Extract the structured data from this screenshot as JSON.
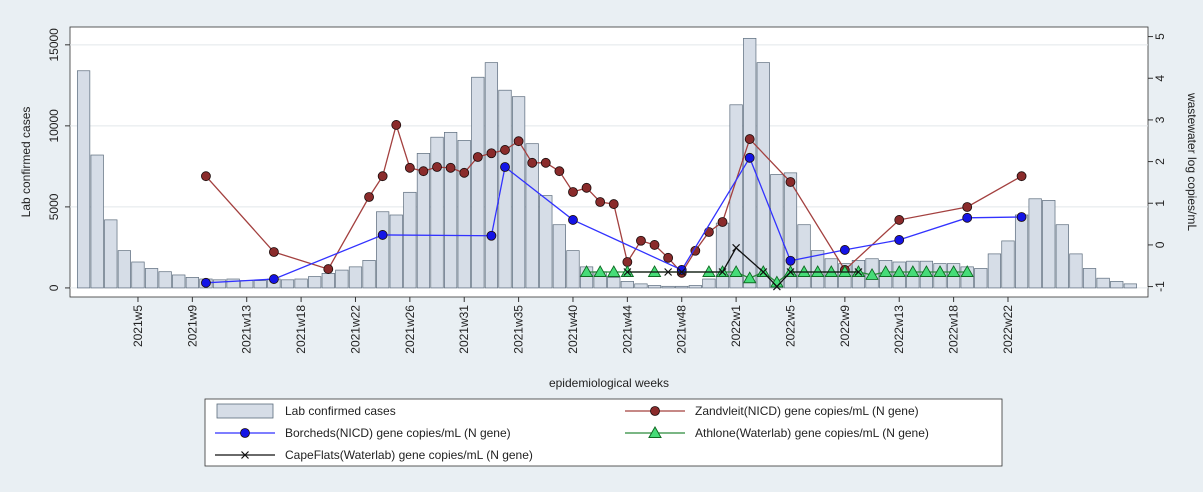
{
  "chart_data": {
    "type": "combo",
    "x_title": "epidemiological weeks",
    "y_title": "Lab confirmed cases",
    "y2_title": "wastewater log copies/mL",
    "xlim": [
      0,
      79.3
    ],
    "xticks": [
      {
        "value": 5,
        "label": "2021w5"
      },
      {
        "value": 9,
        "label": "2021w9"
      },
      {
        "value": 13,
        "label": "2021w13"
      },
      {
        "value": 17,
        "label": "2021w18"
      },
      {
        "value": 21,
        "label": "2021w22"
      },
      {
        "value": 25,
        "label": "2021w26"
      },
      {
        "value": 29,
        "label": "2021w31"
      },
      {
        "value": 33,
        "label": "2021w35"
      },
      {
        "value": 37,
        "label": "2021w40"
      },
      {
        "value": 41,
        "label": "2021w44"
      },
      {
        "value": 45,
        "label": "2021w48"
      },
      {
        "value": 49,
        "label": "2022w1"
      },
      {
        "value": 53,
        "label": "2022w5"
      },
      {
        "value": 57,
        "label": "2022w9"
      },
      {
        "value": 61,
        "label": "2022w13"
      },
      {
        "value": 65,
        "label": "2022w18"
      },
      {
        "value": 69,
        "label": "2022w22"
      }
    ],
    "ylim": [
      -560,
      16100
    ],
    "yticks": [
      0,
      5000,
      10000,
      15000
    ],
    "y2lim": [
      -1.25,
      5.23
    ],
    "y2ticks": [
      -1,
      0,
      1,
      2,
      3,
      4,
      5
    ],
    "grid": true,
    "series": [
      {
        "name": "Lab confirmed cases",
        "type": "bar",
        "color": "#d6dde7",
        "edge": "#5b6b7c",
        "x": [
          1,
          2,
          3,
          4,
          5,
          6,
          7,
          8,
          9,
          10,
          11,
          12,
          13,
          14,
          15,
          16,
          17,
          18,
          19,
          20,
          21,
          22,
          23,
          24,
          25,
          26,
          27,
          28,
          29,
          30,
          31,
          32,
          33,
          34,
          35,
          36,
          37,
          38,
          39,
          40,
          41,
          42,
          43,
          44,
          45,
          46,
          47,
          48,
          49,
          50,
          51,
          52,
          53,
          54,
          55,
          56,
          57,
          58,
          59,
          60,
          61,
          62,
          63,
          64,
          65,
          66,
          67,
          68,
          69,
          70,
          71,
          72,
          73,
          74,
          75,
          76,
          77,
          78
        ],
        "values": [
          13400,
          8200,
          4200,
          2300,
          1600,
          1200,
          1000,
          800,
          650,
          550,
          500,
          550,
          450,
          450,
          550,
          500,
          550,
          700,
          900,
          1100,
          1300,
          1700,
          4700,
          4500,
          5900,
          8300,
          9300,
          9600,
          9100,
          13000,
          13900,
          12200,
          11800,
          8900,
          5700,
          3900,
          2300,
          1300,
          1000,
          650,
          400,
          250,
          150,
          100,
          100,
          150,
          550,
          4000,
          11300,
          15400,
          13900,
          7000,
          7100,
          3900,
          2300,
          1800,
          1500,
          1700,
          1800,
          1700,
          1600,
          1650,
          1650,
          1500,
          1500,
          1300,
          1200,
          2100,
          2900,
          4500,
          5500,
          5400,
          3900,
          2100,
          1200,
          600,
          400,
          250
        ]
      },
      {
        "name": "Zandvleit(NICD) gene copies/mL (N gene)",
        "type": "line",
        "axis": "y2",
        "color": "#a3403f",
        "marker": "circle",
        "marker_fill": "#8a2b2b",
        "x": [
          10,
          15,
          19,
          22,
          23,
          24,
          25,
          26,
          27,
          28,
          29,
          30,
          31,
          32,
          33,
          34,
          35,
          36,
          37,
          38,
          39,
          40,
          41,
          42,
          43,
          44,
          45,
          46,
          47,
          48,
          50,
          53,
          57,
          61,
          66,
          70
        ],
        "values": [
          1.65,
          -0.17,
          -0.58,
          1.15,
          1.65,
          2.88,
          1.85,
          1.77,
          1.87,
          1.85,
          1.73,
          2.11,
          2.2,
          2.28,
          2.49,
          1.97,
          1.97,
          1.77,
          1.27,
          1.37,
          1.03,
          0.98,
          -0.41,
          0.1,
          0,
          -0.31,
          -0.67,
          -0.14,
          0.31,
          0.55,
          2.54,
          1.51,
          -0.6,
          0.6,
          0.91,
          1.65
        ]
      },
      {
        "name": "Borcheds(NICD) gene copies/mL (N gene)",
        "type": "line",
        "axis": "y2",
        "color": "#3232ff",
        "marker": "circle",
        "marker_fill": "#1414e6",
        "x": [
          10,
          15,
          23,
          31,
          32,
          37,
          45,
          50,
          53,
          57,
          61,
          66,
          70
        ],
        "values": [
          -0.91,
          -0.82,
          0.24,
          0.22,
          1.87,
          0.6,
          -0.6,
          2.09,
          -0.38,
          -0.12,
          0.12,
          0.65,
          0.67
        ]
      },
      {
        "name": "Athlone(Waterlab) gene copies/mL (N gene)",
        "type": "line",
        "axis": "y2",
        "color": "#2a8a3a",
        "marker": "triangle",
        "marker_fill": "#46dc78",
        "x": [
          38,
          39,
          40,
          41,
          43,
          47,
          48,
          49,
          50,
          51,
          52,
          53,
          54,
          55,
          56,
          57,
          58,
          59,
          60,
          61,
          62,
          63,
          64,
          65,
          66
        ],
        "values": [
          -0.65,
          -0.65,
          -0.65,
          -0.65,
          -0.65,
          -0.65,
          -0.65,
          -0.65,
          -0.8,
          -0.65,
          -0.9,
          -0.65,
          -0.65,
          -0.65,
          -0.65,
          -0.65,
          -0.65,
          -0.72,
          -0.65,
          -0.65,
          -0.65,
          -0.65,
          -0.65,
          -0.65,
          -0.65
        ]
      },
      {
        "name": "CapeFlats(Waterlab) gene copies/mL (N gene)",
        "type": "line",
        "axis": "y2",
        "color": "#111111",
        "marker": "x",
        "marker_fill": "#111111",
        "x": [
          41,
          44,
          45,
          48,
          49,
          51,
          52,
          53,
          58
        ],
        "values": [
          -0.65,
          -0.65,
          -0.65,
          -0.65,
          -0.07,
          -0.65,
          -1.0,
          -0.65,
          -0.65
        ]
      }
    ]
  }
}
